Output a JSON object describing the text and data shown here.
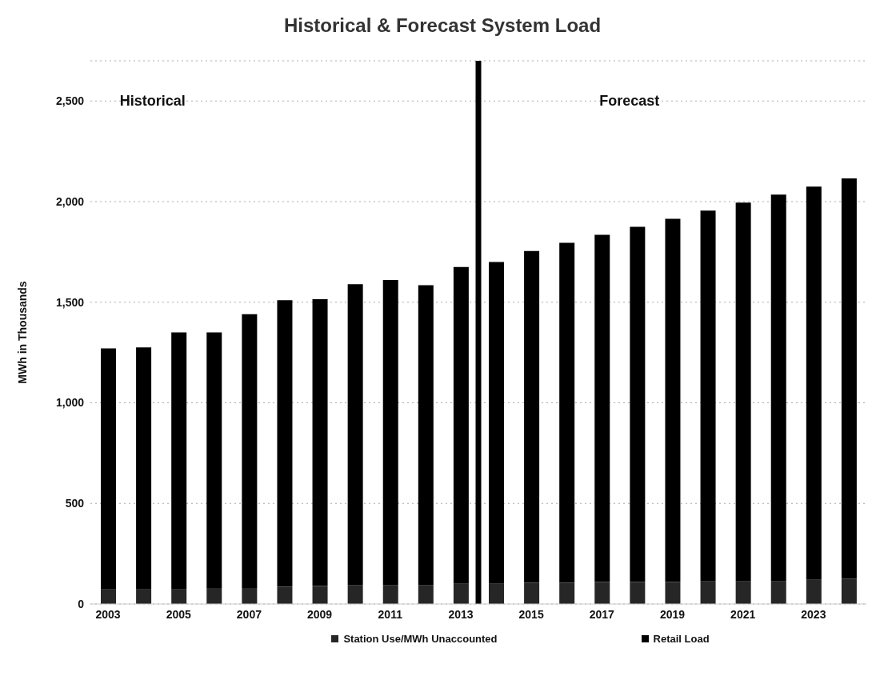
{
  "chart_data": {
    "type": "bar",
    "title": "Historical & Forecast System Load",
    "ylabel": "MWh in Thousands",
    "x": [
      2003,
      2004,
      2005,
      2006,
      2007,
      2008,
      2009,
      2010,
      2011,
      2012,
      2013,
      2014,
      2015,
      2016,
      2017,
      2018,
      2019,
      2020,
      2021,
      2022,
      2023,
      2024
    ],
    "stacked": true,
    "series": [
      {
        "name": "Station Use/MWh Unaccounted",
        "color": "#262626",
        "values": [
          75,
          75,
          75,
          80,
          80,
          85,
          90,
          95,
          95,
          95,
          100,
          100,
          105,
          105,
          110,
          110,
          110,
          115,
          115,
          115,
          120,
          125
        ]
      },
      {
        "name": "Retail Load",
        "color": "#000000",
        "values": [
          1195,
          1200,
          1275,
          1270,
          1360,
          1425,
          1425,
          1495,
          1515,
          1490,
          1575,
          1600,
          1650,
          1690,
          1725,
          1765,
          1805,
          1840,
          1880,
          1920,
          1955,
          1990
        ]
      }
    ],
    "xlim": [
      2002.5,
      2024.5
    ],
    "xticks": [
      2003,
      2005,
      2007,
      2009,
      2011,
      2013,
      2015,
      2017,
      2019,
      2021,
      2023
    ],
    "ylim": [
      0,
      2700
    ],
    "yticks": [
      0,
      {
        "value": 500,
        "label": "500"
      },
      {
        "value": 1000,
        "label": "1,000"
      },
      {
        "value": 1500,
        "label": "1,500"
      },
      {
        "value": 2000,
        "label": "2,000"
      },
      {
        "value": 2500,
        "label": "2,500"
      }
    ],
    "ref_lines": [
      {
        "axis": "x",
        "value": 2013.5,
        "color": "#000000"
      }
    ],
    "annotations": [
      "Historical",
      "Forecast"
    ],
    "grid": "y",
    "legend": "bottom"
  }
}
